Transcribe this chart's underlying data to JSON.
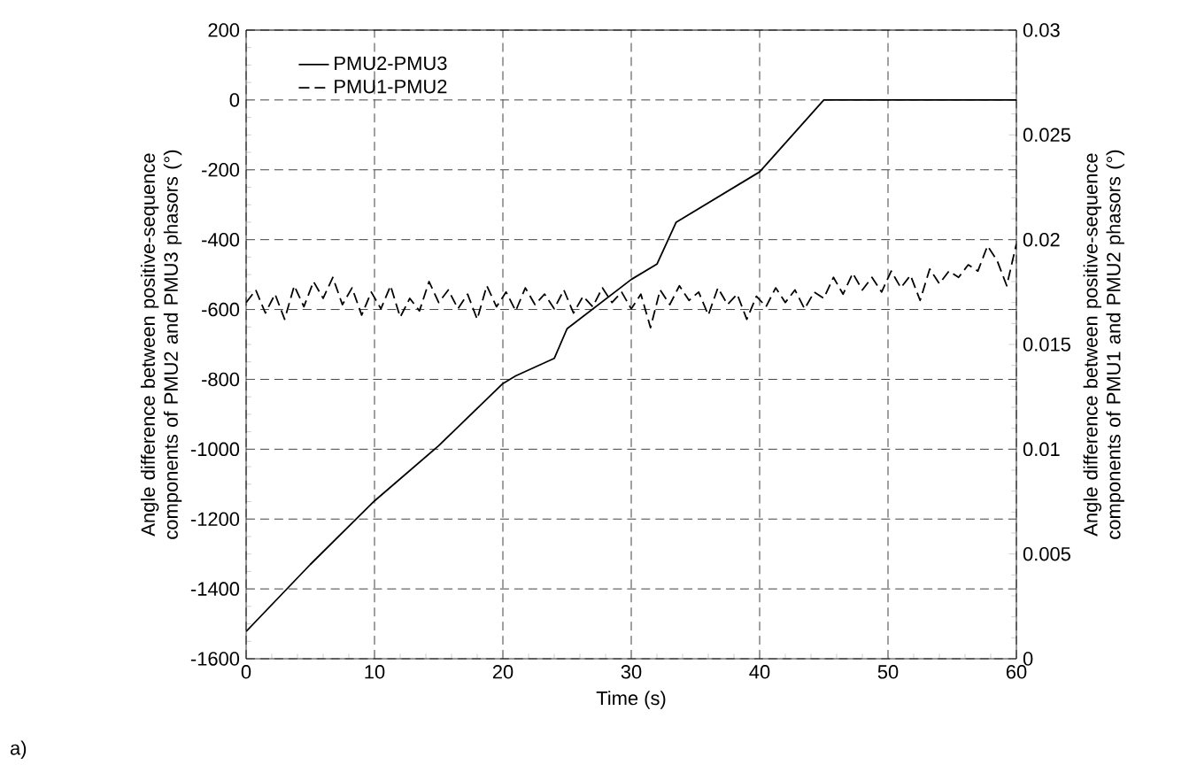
{
  "chart_data": {
    "type": "line",
    "xlabel": "Time (s)",
    "ylabel": "Angle difference between positive-sequence components of PMU2 and PMU3 phasors (°)",
    "y2label": "Angle difference between positive-sequence components of PMU1 and PMU2 phasors (°)",
    "xlim": [
      0,
      60
    ],
    "xticks": [
      0,
      10,
      20,
      30,
      40,
      50,
      60
    ],
    "ylim": [
      -1600,
      200
    ],
    "yticks": [
      -1600,
      -1400,
      -1200,
      -1000,
      -800,
      -600,
      -400,
      -200,
      0,
      200
    ],
    "y2lim": [
      0,
      0.03
    ],
    "y2ticks": [
      0,
      0.005,
      0.01,
      0.015,
      0.02,
      0.025,
      0.03
    ],
    "grid": true,
    "legend": "top left",
    "annotations": [
      "a)"
    ],
    "series": [
      {
        "name": "PMU2-PMU3",
        "color": "#000000",
        "line_style": "solid",
        "x": [
          0,
          5,
          10,
          15,
          20,
          21,
          24,
          25,
          30,
          32,
          33.5,
          40,
          45,
          60
        ],
        "values": [
          -1522,
          -1330,
          -1148,
          -990,
          -812,
          -790,
          -740,
          -655,
          -514,
          -470,
          -350,
          -206,
          0,
          0
        ]
      },
      {
        "name": "PMU1-PMU2",
        "color": "#000000",
        "line_style": "dashed",
        "axis": "y2",
        "x": [
          0,
          0.75,
          1.5,
          2.25,
          3,
          3.75,
          4.5,
          5.25,
          6,
          6.75,
          7.5,
          8.25,
          9,
          9.75,
          10.5,
          11.25,
          12,
          12.75,
          13.5,
          14.25,
          15,
          15.75,
          16.5,
          17.25,
          18,
          18.75,
          19.5,
          20.25,
          21,
          21.75,
          22.5,
          23.25,
          24,
          24.75,
          25.5,
          26.25,
          27,
          27.75,
          28.5,
          29.25,
          30,
          30.75,
          31.5,
          32.25,
          33,
          33.75,
          34.5,
          35.25,
          36,
          36.75,
          37.5,
          38.25,
          39,
          39.75,
          40.5,
          41.25,
          42,
          42.75,
          43.5,
          44.25,
          45,
          45.75,
          46.5,
          47.25,
          48,
          48.75,
          49.5,
          50.25,
          51,
          51.75,
          52.5,
          53.25,
          54,
          54.75,
          55.5,
          56.25,
          57,
          57.75,
          58.5,
          59.25,
          60
        ],
        "values": [
          0.017,
          0.0176,
          0.0165,
          0.0174,
          0.0162,
          0.0178,
          0.0168,
          0.018,
          0.0172,
          0.0182,
          0.0169,
          0.0177,
          0.0164,
          0.0175,
          0.0167,
          0.0178,
          0.0163,
          0.0172,
          0.0166,
          0.018,
          0.017,
          0.0176,
          0.0167,
          0.0174,
          0.0162,
          0.0178,
          0.0168,
          0.0175,
          0.0166,
          0.0177,
          0.0169,
          0.0174,
          0.0167,
          0.0176,
          0.0165,
          0.0173,
          0.0168,
          0.0177,
          0.017,
          0.0175,
          0.0167,
          0.0174,
          0.0158,
          0.0176,
          0.0169,
          0.0178,
          0.0171,
          0.0175,
          0.0164,
          0.0177,
          0.0169,
          0.0174,
          0.0162,
          0.0173,
          0.0168,
          0.0177,
          0.017,
          0.0176,
          0.0167,
          0.0175,
          0.0172,
          0.0182,
          0.0174,
          0.0184,
          0.0176,
          0.0182,
          0.0175,
          0.0185,
          0.0177,
          0.0183,
          0.0171,
          0.0186,
          0.0179,
          0.0185,
          0.0182,
          0.0188,
          0.0185,
          0.0197,
          0.019,
          0.0178,
          0.0198
        ]
      }
    ]
  }
}
